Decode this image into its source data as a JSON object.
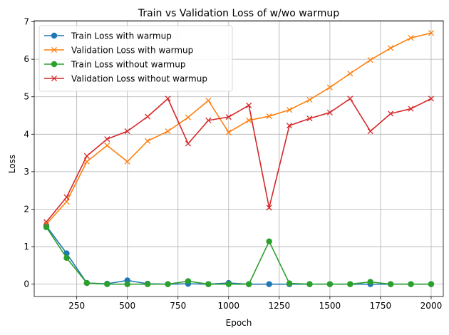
{
  "chart_data": {
    "type": "line",
    "title": "Train vs Validation Loss of w/wo warmup",
    "xlabel": "Epoch",
    "ylabel": "Loss",
    "xlim": [
      40,
      2060
    ],
    "ylim": [
      -0.33,
      7.03
    ],
    "xticks": [
      250,
      500,
      750,
      1000,
      1250,
      1500,
      1750,
      2000
    ],
    "yticks": [
      0,
      1,
      2,
      3,
      4,
      5,
      6,
      7
    ],
    "grid": true,
    "legend_position": "top-left",
    "x": [
      100,
      200,
      300,
      400,
      500,
      600,
      700,
      800,
      900,
      1000,
      1100,
      1200,
      1300,
      1400,
      1500,
      1600,
      1700,
      1800,
      1900,
      2000
    ],
    "series": [
      {
        "name": "Train Loss with warmup",
        "color": "#1f77b4",
        "marker": "circle",
        "values": [
          1.55,
          0.82,
          0.03,
          0.01,
          0.1,
          0.01,
          0.0,
          0.01,
          0.0,
          0.03,
          0.0,
          0.0,
          0.0,
          0.0,
          0.0,
          0.0,
          0.0,
          0.0,
          0.0,
          0.0
        ]
      },
      {
        "name": "Validation Loss with warmup",
        "color": "#ff7f0e",
        "marker": "x",
        "values": [
          1.6,
          2.2,
          3.27,
          3.7,
          3.27,
          3.82,
          4.08,
          4.45,
          4.9,
          4.05,
          4.37,
          4.48,
          4.65,
          4.92,
          5.25,
          5.62,
          5.98,
          6.3,
          6.57,
          6.7
        ]
      },
      {
        "name": "Train Loss without warmup",
        "color": "#2ca02c",
        "marker": "circle",
        "values": [
          1.52,
          0.7,
          0.03,
          0.0,
          0.0,
          0.0,
          0.0,
          0.08,
          0.0,
          0.0,
          0.0,
          1.14,
          0.02,
          0.0,
          0.0,
          0.0,
          0.06,
          0.0,
          0.0,
          0.0
        ]
      },
      {
        "name": "Validation Loss without warmup",
        "color": "#d62728",
        "marker": "x",
        "values": [
          1.66,
          2.32,
          3.42,
          3.87,
          4.08,
          4.47,
          4.95,
          3.75,
          4.37,
          4.46,
          4.77,
          2.04,
          4.23,
          4.42,
          4.58,
          4.95,
          4.08,
          4.55,
          4.68,
          4.95
        ]
      }
    ]
  }
}
